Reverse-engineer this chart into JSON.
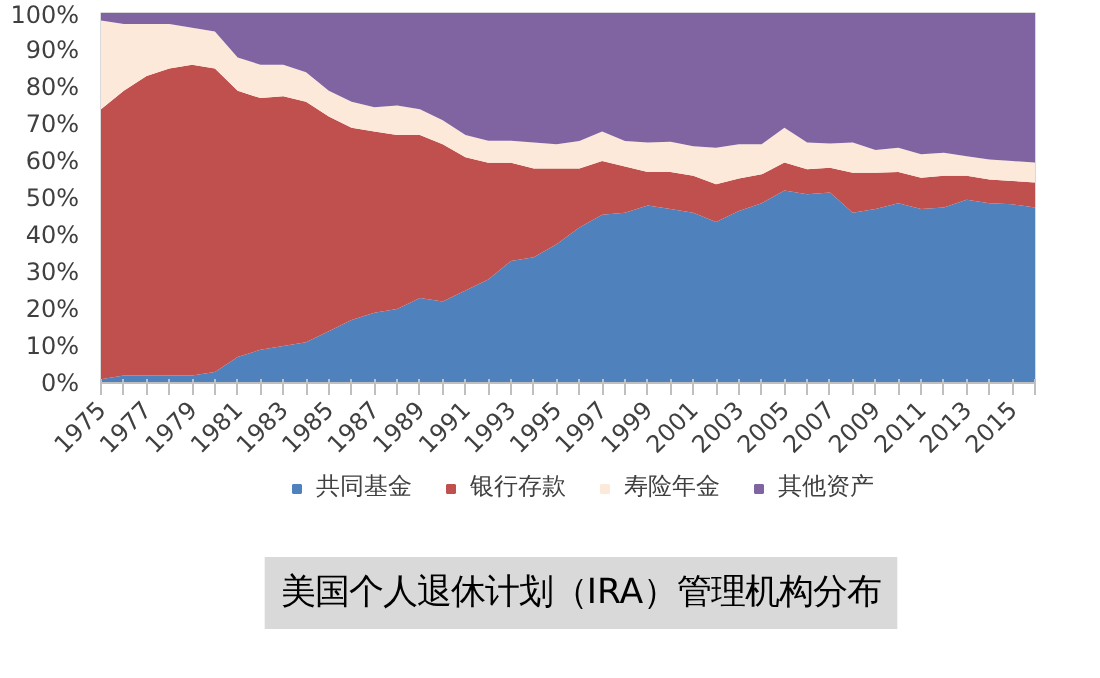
{
  "chart_data": {
    "type": "area",
    "stacked": true,
    "title": "美国个人退休计划（IRA）管理机构分布",
    "x": [
      1975,
      1976,
      1977,
      1978,
      1979,
      1980,
      1981,
      1982,
      1983,
      1984,
      1985,
      1986,
      1987,
      1988,
      1989,
      1990,
      1991,
      1992,
      1993,
      1994,
      1995,
      1996,
      1997,
      1998,
      1999,
      2000,
      2001,
      2002,
      2003,
      2004,
      2005,
      2006,
      2007,
      2008,
      2009,
      2010,
      2011,
      2012,
      2013,
      2014,
      2015,
      2016
    ],
    "series": [
      {
        "name": "共同基金",
        "color": "#4f81bd",
        "values": [
          1,
          2,
          2,
          2,
          2,
          3,
          7,
          9,
          10,
          11,
          14,
          17,
          19,
          20,
          23,
          22,
          25,
          28,
          33,
          34,
          37.5,
          42,
          45.5,
          46,
          48,
          47,
          46,
          43.5,
          46.5,
          48.6,
          52,
          51,
          51.5,
          46,
          47,
          48.6,
          47,
          47.4,
          49.5,
          48.6,
          48.3,
          47.4
        ]
      },
      {
        "name": "银行存款",
        "color": "#c0504d",
        "values": [
          73,
          77,
          81,
          83,
          84,
          82,
          72,
          68,
          67.5,
          65,
          58,
          52,
          49,
          47,
          44,
          42.5,
          36,
          31.5,
          26.5,
          24,
          20.5,
          16,
          14.5,
          12.5,
          9,
          10,
          10,
          10.2,
          8.8,
          7.8,
          7.6,
          6.8,
          6.7,
          10.8,
          9.8,
          8.4,
          8.5,
          8.6,
          6.5,
          6.4,
          6.3,
          6.8
        ]
      },
      {
        "name": "寿险年金",
        "color": "#fde9d9",
        "values": [
          24,
          18,
          14,
          12,
          10,
          10,
          9,
          9,
          8.5,
          8,
          7,
          7,
          6.5,
          8,
          7,
          6.5,
          6,
          6,
          6,
          7,
          6.5,
          7.4,
          8,
          6.9,
          8,
          8.2,
          8,
          9.9,
          9.2,
          8.1,
          9.4,
          7.2,
          6.5,
          8.2,
          6.2,
          6.6,
          6.3,
          6.2,
          5.3,
          5.4,
          5.4,
          5.4
        ]
      },
      {
        "name": "其他资产",
        "color": "#8064a2",
        "values": [
          2,
          3,
          3,
          3,
          4,
          5,
          12,
          14,
          14,
          16,
          21,
          24,
          25.5,
          25,
          26,
          29,
          33,
          34.5,
          34.5,
          35,
          35.5,
          34.6,
          32,
          34.6,
          35,
          34.8,
          36,
          36.4,
          35.5,
          35.5,
          31,
          35,
          35.3,
          35,
          37,
          36.4,
          38.2,
          37.8,
          38.7,
          39.6,
          40,
          40.4
        ]
      }
    ],
    "xlim": [
      1975,
      2016
    ],
    "xticks": [
      1975,
      {
        "value": 1976,
        "label": null
      },
      1977,
      {
        "value": 1978,
        "label": null
      },
      1979,
      {
        "value": 1980,
        "label": null
      },
      1981,
      {
        "value": 1982,
        "label": null
      },
      1983,
      {
        "value": 1984,
        "label": null
      },
      1985,
      {
        "value": 1986,
        "label": null
      },
      1987,
      {
        "value": 1988,
        "label": null
      },
      1989,
      {
        "value": 1990,
        "label": null
      },
      1991,
      {
        "value": 1992,
        "label": null
      },
      1993,
      {
        "value": 1994,
        "label": null
      },
      1995,
      {
        "value": 1996,
        "label": null
      },
      1997,
      {
        "value": 1998,
        "label": null
      },
      1999,
      {
        "value": 2000,
        "label": null
      },
      2001,
      {
        "value": 2002,
        "label": null
      },
      2003,
      {
        "value": 2004,
        "label": null
      },
      2005,
      {
        "value": 2006,
        "label": null
      },
      2007,
      {
        "value": 2008,
        "label": null
      },
      2009,
      {
        "value": 2010,
        "label": null
      },
      2011,
      {
        "value": 2012,
        "label": null
      },
      2013,
      {
        "value": 2014,
        "label": null
      },
      2015,
      {
        "value": 2016,
        "label": null
      }
    ],
    "ylim": [
      0,
      100
    ],
    "yticks": [
      {
        "value": 0,
        "label": "0%"
      },
      {
        "value": 10,
        "label": "10%"
      },
      {
        "value": 20,
        "label": "20%"
      },
      {
        "value": 30,
        "label": "30%"
      },
      {
        "value": 40,
        "label": "40%"
      },
      {
        "value": 50,
        "label": "50%"
      },
      {
        "value": 60,
        "label": "60%"
      },
      {
        "value": 70,
        "label": "70%"
      },
      {
        "value": 80,
        "label": "80%"
      },
      {
        "value": 90,
        "label": "90%"
      },
      {
        "value": 100,
        "label": "100%"
      }
    ],
    "legend": "bottom",
    "grid": false
  }
}
